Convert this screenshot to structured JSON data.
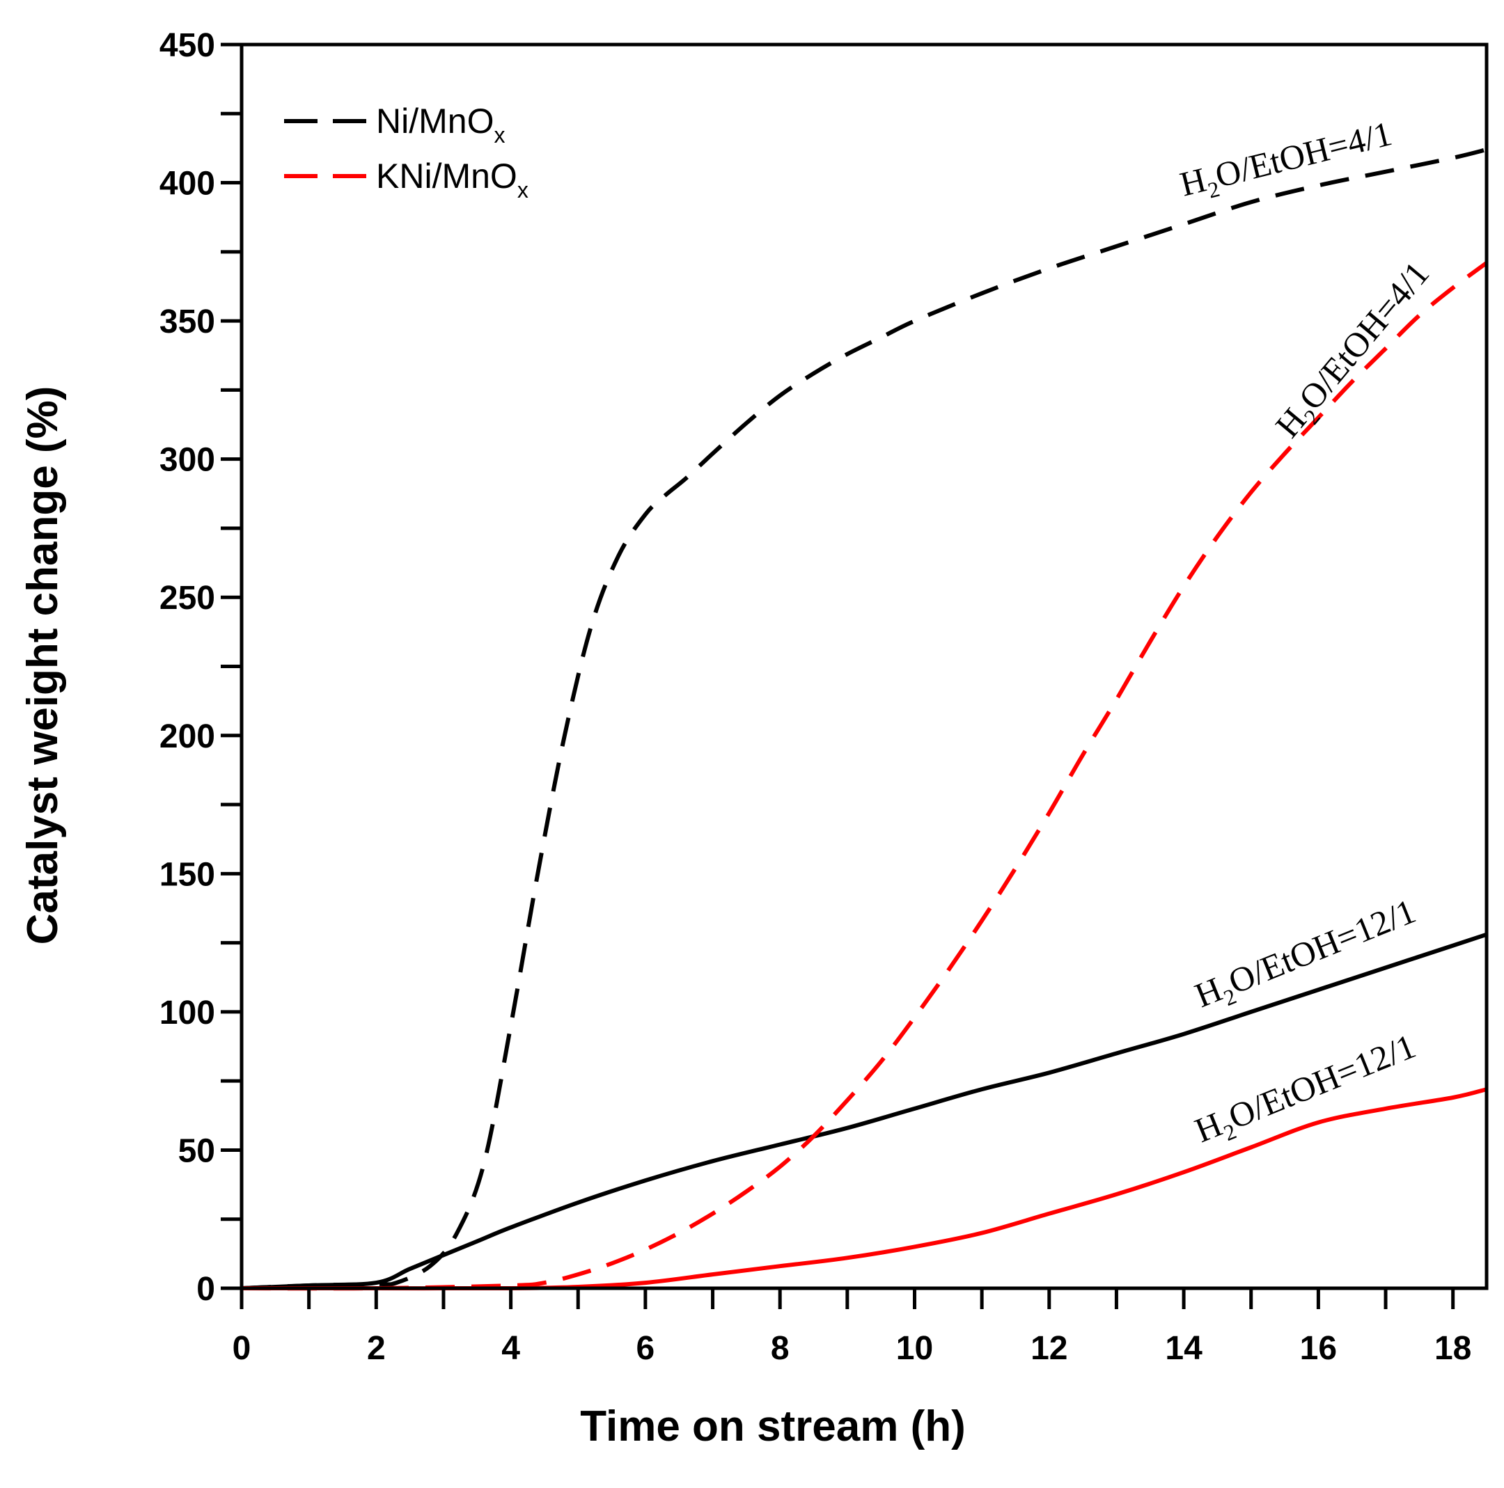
{
  "chart_data": {
    "type": "line",
    "title": "",
    "xlabel": "Time on stream (h)",
    "ylabel": "Catalyst weight change (%)",
    "xlim": [
      0,
      18.5
    ],
    "ylim": [
      0,
      450
    ],
    "xticks": [
      0,
      2,
      4,
      6,
      8,
      10,
      12,
      14,
      16,
      18
    ],
    "yticks": [
      0,
      50,
      100,
      150,
      200,
      250,
      300,
      350,
      400,
      450
    ],
    "grid": false,
    "legend": {
      "position": "top-left",
      "entries": [
        {
          "base": "Ni/MnO",
          "sub": "x",
          "color": "#000000"
        },
        {
          "base": "KNi/MnO",
          "sub": "x",
          "color": "#ff0000"
        }
      ]
    },
    "series": [
      {
        "name": "Ni/MnOx H2O/EtOH=4/1",
        "catalyst": "Ni/MnOx",
        "ratio": "H2O/EtOH=4/1",
        "color": "#000000",
        "style": "dashed",
        "x": [
          0,
          1,
          2,
          2.3,
          2.8,
          3.2,
          3.6,
          4.0,
          4.4,
          4.8,
          5.2,
          5.6,
          6.0,
          6.3,
          6.6,
          7.0,
          7.5,
          8.0,
          8.5,
          9.0,
          9.5,
          10,
          11,
          12,
          13,
          14,
          15,
          16,
          17,
          18,
          18.5
        ],
        "y": [
          0,
          1,
          1.5,
          2,
          8,
          20,
          45,
          95,
          150,
          200,
          240,
          265,
          280,
          287,
          293,
          302,
          313,
          323,
          331,
          338,
          344,
          350,
          360,
          369,
          377,
          385,
          393,
          399,
          404,
          409,
          412
        ]
      },
      {
        "name": "Ni/MnOx H2O/EtOH=12/1",
        "catalyst": "Ni/MnOx",
        "ratio": "H2O/EtOH=12/1",
        "color": "#000000",
        "style": "solid",
        "x": [
          0,
          1,
          2,
          2.5,
          3,
          3.5,
          4,
          5,
          6,
          7,
          8,
          9,
          10,
          11,
          12,
          13,
          14,
          15,
          16,
          17,
          18,
          18.5
        ],
        "y": [
          0,
          1,
          2,
          7,
          12,
          17,
          22,
          31,
          39,
          46,
          52,
          58,
          65,
          72,
          78,
          85,
          92,
          100,
          108,
          116,
          124,
          128
        ]
      },
      {
        "name": "KNi/MnOx H2O/EtOH=4/1",
        "catalyst": "KNi/MnOx",
        "ratio": "H2O/EtOH=4/1",
        "color": "#ff0000",
        "style": "dashed",
        "x": [
          0,
          2,
          4,
          4.5,
          5,
          5.5,
          6,
          6.5,
          7,
          7.5,
          8,
          8.5,
          9,
          9.5,
          10,
          10.5,
          11,
          11.5,
          12,
          12.5,
          13,
          13.5,
          14,
          14.5,
          15,
          15.5,
          16,
          16.5,
          17,
          17.5,
          18,
          18.5
        ],
        "y": [
          0,
          0,
          1,
          2,
          5,
          9,
          14,
          20,
          27,
          35,
          44,
          55,
          68,
          82,
          98,
          115,
          133,
          152,
          172,
          193,
          213,
          234,
          254,
          272,
          288,
          302,
          315,
          328,
          340,
          352,
          362,
          371
        ]
      },
      {
        "name": "KNi/MnOx H2O/EtOH=12/1",
        "catalyst": "KNi/MnOx",
        "ratio": "H2O/EtOH=12/1",
        "color": "#ff0000",
        "style": "solid",
        "x": [
          0,
          2,
          4,
          5,
          6,
          7,
          8,
          9,
          10,
          11,
          12,
          13,
          14,
          15,
          16,
          17,
          18,
          18.5
        ],
        "y": [
          0,
          0,
          0,
          0.5,
          2,
          5,
          8,
          11,
          15,
          20,
          27,
          34,
          42,
          51,
          60,
          65,
          69,
          72
        ]
      }
    ],
    "annotations": [
      {
        "base1": "H",
        "sub1": "2",
        "rest": "O/EtOH=4/1",
        "series": "Ni/MnOx H2O/EtOH=4/1"
      },
      {
        "base1": "H",
        "sub1": "2",
        "rest": "O/EtOH=4/1",
        "series": "KNi/MnOx H2O/EtOH=4/1"
      },
      {
        "base1": "H",
        "sub1": "2",
        "rest": "O/EtOH=12/1",
        "series": "Ni/MnOx H2O/EtOH=12/1"
      },
      {
        "base1": "H",
        "sub1": "2",
        "rest": "O/EtOH=12/1",
        "series": "KNi/MnOx H2O/EtOH=12/1"
      }
    ]
  }
}
